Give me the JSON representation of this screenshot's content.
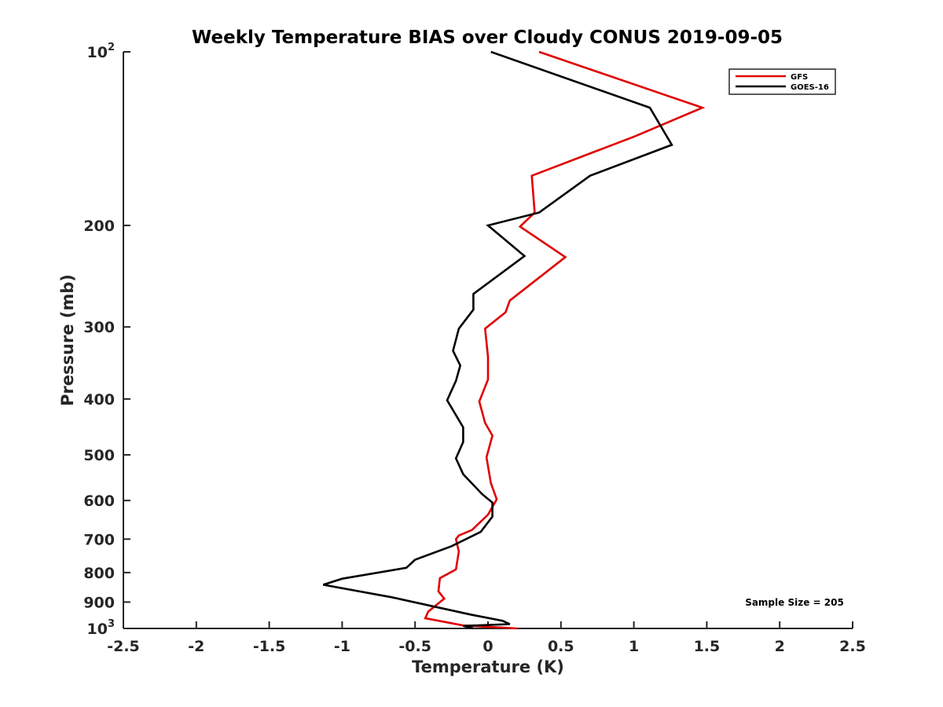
{
  "chart_data": {
    "type": "line",
    "title": "Weekly Temperature BIAS over Cloudy CONUS 2019-09-05",
    "xlabel": "Temperature (K)",
    "ylabel": "Pressure (mb)",
    "xlim": [
      -2.5,
      2.5
    ],
    "ylim": [
      1000,
      100
    ],
    "y_scale": "log",
    "y_reversed": true,
    "grid": false,
    "legend_position": "top-right",
    "x_ticks": [
      "-2.5",
      "-2",
      "-1.5",
      "-1",
      "-0.5",
      "0",
      "0.5",
      "1",
      "1.5",
      "2",
      "2.5"
    ],
    "y_ticks": [
      {
        "value": 100,
        "base": "10",
        "exp": "2"
      },
      {
        "value": 200,
        "label": "200"
      },
      {
        "value": 300,
        "label": "300"
      },
      {
        "value": 400,
        "label": "400"
      },
      {
        "value": 500,
        "label": "500"
      },
      {
        "value": 600,
        "label": "600"
      },
      {
        "value": 700,
        "label": "700"
      },
      {
        "value": 800,
        "label": "800"
      },
      {
        "value": 900,
        "label": "900"
      },
      {
        "value": 1000,
        "base": "10",
        "exp": "3"
      }
    ],
    "annotation": "Sample Size = 205",
    "series": [
      {
        "name": "GFS",
        "color": "#e00000",
        "points": [
          [
            0.35,
            100
          ],
          [
            1.47,
            125
          ],
          [
            1.01,
            140
          ],
          [
            0.3,
            164
          ],
          [
            0.32,
            190
          ],
          [
            0.22,
            201
          ],
          [
            0.53,
            227
          ],
          [
            0.15,
            270
          ],
          [
            0.12,
            283
          ],
          [
            -0.02,
            302
          ],
          [
            0.0,
            338
          ],
          [
            0.0,
            370
          ],
          [
            -0.06,
            404
          ],
          [
            -0.02,
            440
          ],
          [
            0.03,
            463
          ],
          [
            -0.01,
            505
          ],
          [
            0.02,
            560
          ],
          [
            0.06,
            597
          ],
          [
            0.0,
            635
          ],
          [
            -0.11,
            675
          ],
          [
            -0.2,
            690
          ],
          [
            -0.22,
            700
          ],
          [
            -0.2,
            735
          ],
          [
            -0.22,
            790
          ],
          [
            -0.33,
            818
          ],
          [
            -0.34,
            862
          ],
          [
            -0.3,
            888
          ],
          [
            -0.41,
            935
          ],
          [
            -0.43,
            960
          ],
          [
            -0.17,
            988
          ],
          [
            0.2,
            1000
          ]
        ]
      },
      {
        "name": "GOES-16",
        "color": "#000000",
        "points": [
          [
            0.02,
            100
          ],
          [
            1.11,
            125
          ],
          [
            1.26,
            145
          ],
          [
            0.7,
            164
          ],
          [
            0.35,
            190
          ],
          [
            0.0,
            200
          ],
          [
            0.25,
            226
          ],
          [
            -0.1,
            263
          ],
          [
            -0.1,
            280
          ],
          [
            -0.2,
            302
          ],
          [
            -0.24,
            330
          ],
          [
            -0.19,
            350
          ],
          [
            -0.22,
            372
          ],
          [
            -0.28,
            402
          ],
          [
            -0.17,
            448
          ],
          [
            -0.17,
            475
          ],
          [
            -0.22,
            507
          ],
          [
            -0.17,
            540
          ],
          [
            -0.04,
            585
          ],
          [
            0.03,
            605
          ],
          [
            0.03,
            640
          ],
          [
            -0.05,
            680
          ],
          [
            -0.25,
            720
          ],
          [
            -0.5,
            760
          ],
          [
            -0.56,
            785
          ],
          [
            -1.0,
            820
          ],
          [
            -1.13,
            840
          ],
          [
            -0.66,
            883
          ],
          [
            -0.12,
            946
          ],
          [
            0.1,
            970
          ],
          [
            0.15,
            983
          ],
          [
            -0.17,
            990
          ],
          [
            -0.1,
            1000
          ]
        ]
      }
    ]
  }
}
